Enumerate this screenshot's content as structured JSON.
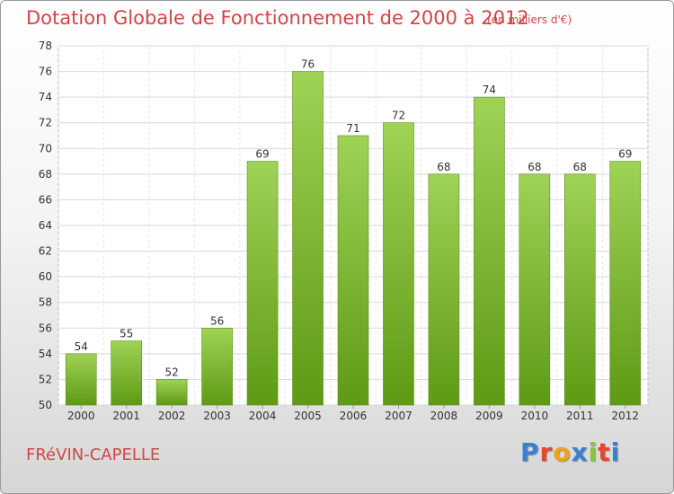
{
  "header": {
    "title": "Dotation Globale de Fonctionnement de 2000 à 2012",
    "subtitle": "(en milliers d'€)"
  },
  "footer": {
    "city": "FRéVIN-CAPELLE",
    "logo": {
      "letters": [
        "P",
        "r",
        "o",
        "x",
        "i",
        "t",
        "i"
      ],
      "colors": [
        "#3a7fd0",
        "#e6472b",
        "#f2a21a",
        "#3a7fd0",
        "#8cc63f",
        "#e6472b",
        "#3a7fd0"
      ]
    }
  },
  "colors": {
    "bar_top": "#9fd356",
    "bar_bottom": "#5e9a14",
    "title": "#d24545"
  },
  "chart_data": {
    "type": "bar",
    "categories": [
      "2000",
      "2001",
      "2002",
      "2003",
      "2004",
      "2005",
      "2006",
      "2007",
      "2008",
      "2009",
      "2010",
      "2011",
      "2012"
    ],
    "values": [
      54,
      55,
      52,
      56,
      69,
      76,
      71,
      72,
      68,
      74,
      68,
      68,
      69
    ],
    "ylim": [
      50,
      78
    ],
    "yticks": [
      50,
      52,
      54,
      56,
      58,
      60,
      62,
      64,
      66,
      68,
      70,
      72,
      74,
      76,
      78
    ],
    "grid": true,
    "data_labels": true
  }
}
